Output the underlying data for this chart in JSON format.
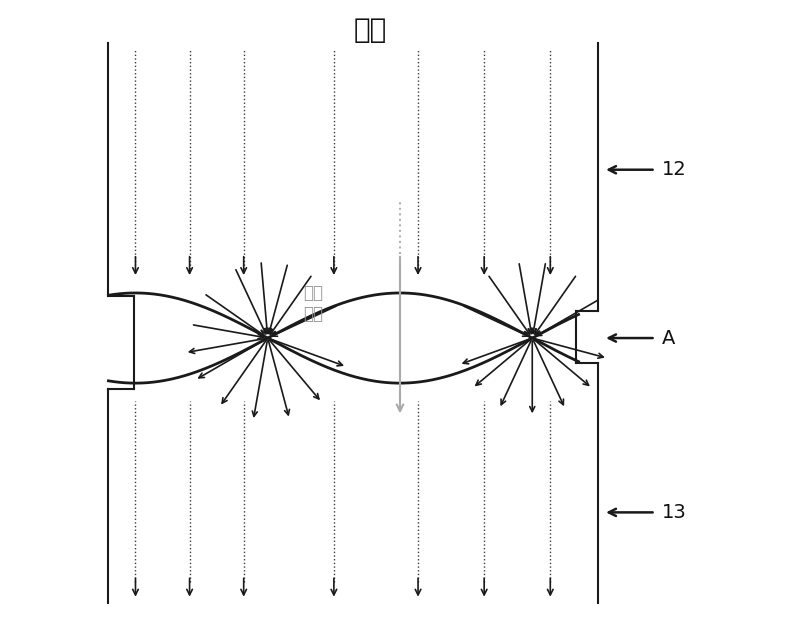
{
  "title": "热量",
  "label_shao": "少量",
  "label_re": "热量",
  "label_12": "12",
  "label_A": "A",
  "label_13": "13",
  "bg_color": "#ffffff",
  "arrow_color": "#1a1a1a",
  "line_color": "#1a1a1a",
  "gray_color": "#aaaaaa",
  "figsize": [
    8.0,
    6.28
  ],
  "dpi": 100,
  "xlim": [
    0,
    10
  ],
  "ylim": [
    0,
    10
  ],
  "node1x": 2.8,
  "node1y": 4.7,
  "node2x": 7.2,
  "node2y": 4.7,
  "vlines_x": [
    0.6,
    1.5,
    2.4,
    3.9,
    5.3,
    6.4,
    7.5
  ],
  "rbx": 8.3,
  "lbx": 0.15
}
